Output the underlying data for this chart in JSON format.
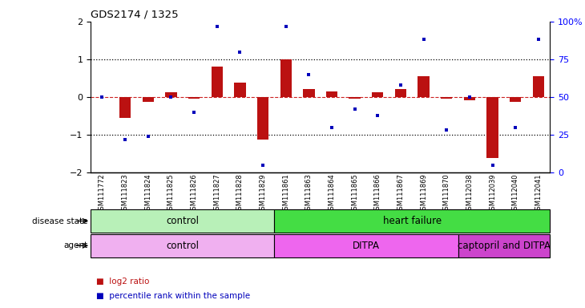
{
  "title": "GDS2174 / 1325",
  "samples": [
    "GSM111772",
    "GSM111823",
    "GSM111824",
    "GSM111825",
    "GSM111826",
    "GSM111827",
    "GSM111828",
    "GSM111829",
    "GSM111861",
    "GSM111863",
    "GSM111864",
    "GSM111865",
    "GSM111866",
    "GSM111867",
    "GSM111869",
    "GSM111870",
    "GSM112038",
    "GSM112039",
    "GSM112040",
    "GSM112041"
  ],
  "log2_ratio": [
    0.0,
    -0.55,
    -0.12,
    0.12,
    -0.05,
    0.8,
    0.38,
    -1.12,
    1.0,
    0.22,
    0.15,
    -0.05,
    0.12,
    0.22,
    0.55,
    -0.05,
    -0.08,
    -1.62,
    -0.12,
    0.55
  ],
  "percentile_rank": [
    50,
    22,
    24,
    50,
    40,
    97,
    80,
    5,
    97,
    65,
    30,
    42,
    38,
    58,
    88,
    28,
    50,
    5,
    30,
    88
  ],
  "disease_state": [
    {
      "label": "control",
      "start": 0,
      "end": 8,
      "color": "#B8F0B8"
    },
    {
      "label": "heart failure",
      "start": 8,
      "end": 20,
      "color": "#44DD44"
    }
  ],
  "agent": [
    {
      "label": "control",
      "start": 0,
      "end": 8,
      "color": "#F0B0F0"
    },
    {
      "label": "DITPA",
      "start": 8,
      "end": 16,
      "color": "#EE66EE"
    },
    {
      "label": "captopril and DITPA",
      "start": 16,
      "end": 20,
      "color": "#CC44CC"
    }
  ],
  "ylim_left": [
    -2,
    2
  ],
  "ylim_right": [
    0,
    100
  ],
  "bar_color": "#BB1111",
  "dot_color": "#0000BB",
  "bar_width": 0.5,
  "right_ytick_labels": [
    "0",
    "25",
    "50",
    "75",
    "100%"
  ],
  "right_ytick_values": [
    0,
    25,
    50,
    75,
    100
  ],
  "left_ytick_values": [
    -2,
    -1,
    0,
    1,
    2
  ],
  "legend_items": [
    {
      "label": "log2 ratio",
      "color": "#BB1111"
    },
    {
      "label": "percentile rank within the sample",
      "color": "#0000BB"
    }
  ]
}
